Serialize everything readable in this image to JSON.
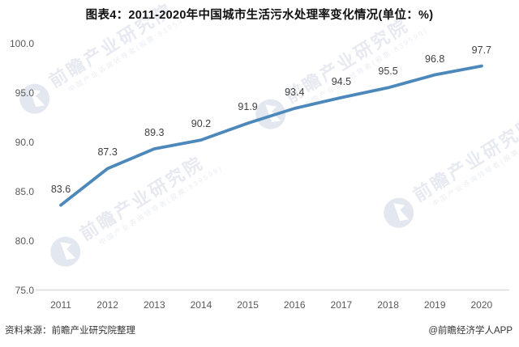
{
  "chart_data": {
    "type": "line",
    "title": "图表4：2011-2020年中国城市生活污水处理率变化情况(单位：%)",
    "categories": [
      "2011",
      "2012",
      "2013",
      "2014",
      "2015",
      "2016",
      "2017",
      "2018",
      "2019",
      "2020"
    ],
    "values": [
      83.6,
      87.3,
      89.3,
      90.2,
      91.9,
      93.4,
      94.5,
      95.5,
      96.8,
      97.7
    ],
    "series_name": "城市生活污水处理率",
    "unit": "%",
    "ylim": [
      75,
      100
    ],
    "yticks": [
      "75.0",
      "80.0",
      "85.0",
      "90.0",
      "95.0",
      "100.0"
    ],
    "xlabel": "",
    "ylabel": "",
    "grid": false,
    "legend": "none",
    "data_labels": true,
    "line_color": "#4d88bb",
    "axis_line_color": "#d9d9d9",
    "label_color": "#3f3f3f",
    "tick_color": "#595959"
  },
  "watermark": {
    "main": "前瞻产业研究院",
    "sub": "中国产业咨询领导者(股票:839599)"
  },
  "footer": {
    "source": "资料来源：前瞻产业研究院整理",
    "credit": "@前瞻经济学人APP"
  }
}
